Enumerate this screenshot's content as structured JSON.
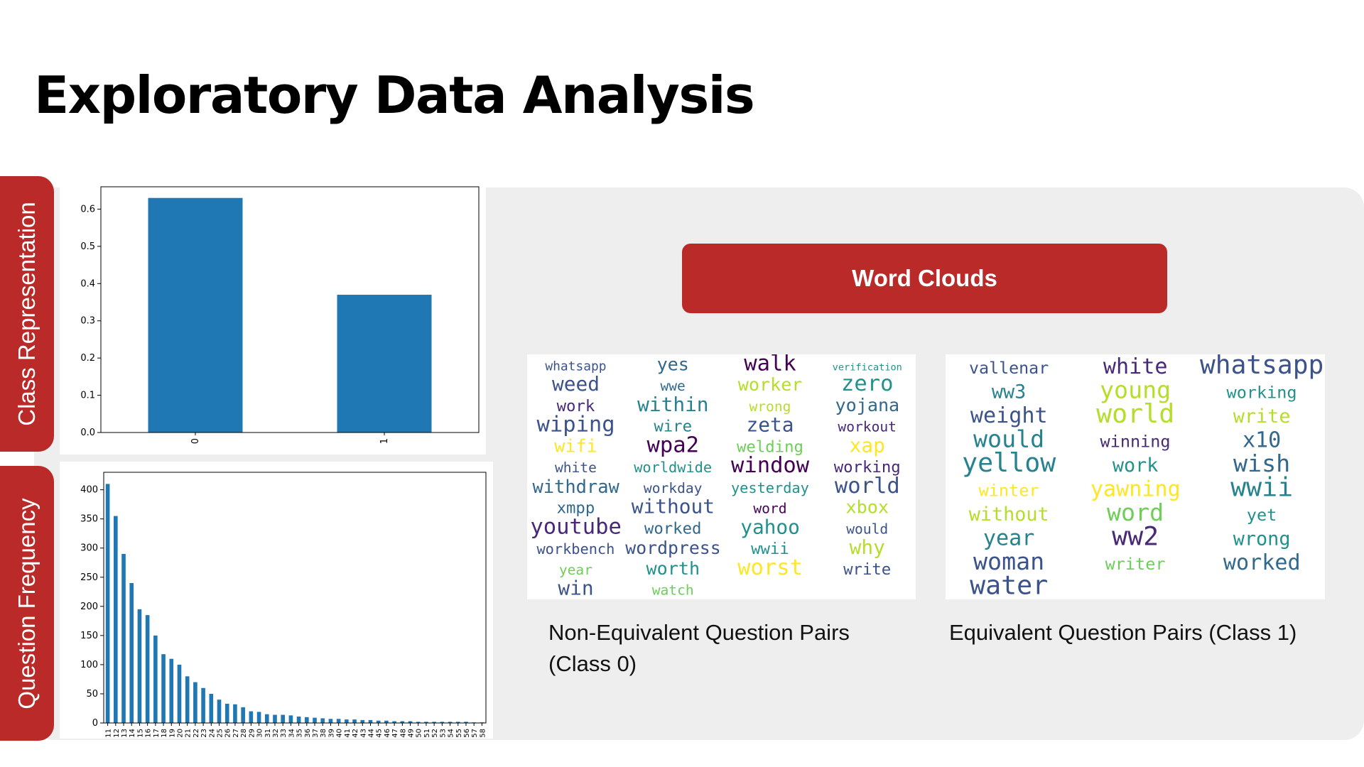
{
  "slide": {
    "title": "Exploratory Data Analysis",
    "tab_class": "Class Representation",
    "tab_freq": "Question Frequency",
    "button_label": "Word Clouds",
    "caption_class0": "Non-Equivalent Question Pairs (Class 0)",
    "caption_class1": "Equivalent Question Pairs (Class 1)"
  },
  "colors": {
    "accent_red": "#b92a28",
    "panel_gray": "#eeeeee",
    "bar_blue": "#1f77b4"
  },
  "chart_data": [
    {
      "type": "bar",
      "categories": [
        "0",
        "1"
      ],
      "values": [
        0.63,
        0.37
      ],
      "ylim": [
        0,
        0.66
      ],
      "yticks": [
        "0.0",
        "0.1",
        "0.2",
        "0.3",
        "0.4",
        "0.5",
        "0.6"
      ],
      "title": "",
      "xlabel": "",
      "ylabel": ""
    },
    {
      "type": "bar",
      "categories": [
        "11",
        "12",
        "13",
        "14",
        "15",
        "16",
        "17",
        "18",
        "19",
        "20",
        "21",
        "22",
        "23",
        "24",
        "25",
        "26",
        "27",
        "28",
        "29",
        "30",
        "31",
        "32",
        "33",
        "34",
        "35",
        "36",
        "37",
        "38",
        "39",
        "40",
        "41",
        "42",
        "43",
        "44",
        "45",
        "46",
        "47",
        "48",
        "49",
        "50",
        "51",
        "52",
        "53",
        "54",
        "55",
        "56",
        "57",
        "58"
      ],
      "values": [
        410,
        355,
        290,
        240,
        195,
        185,
        150,
        118,
        110,
        100,
        80,
        70,
        60,
        50,
        40,
        33,
        32,
        27,
        20,
        19,
        15,
        14,
        14,
        13,
        11,
        10,
        9,
        8,
        7,
        7,
        6,
        6,
        5,
        5,
        4,
        4,
        3,
        3,
        3,
        2,
        2,
        2,
        2,
        2,
        2,
        2,
        1,
        1
      ],
      "ylim": [
        0,
        430
      ],
      "yticks": [
        "0",
        "50",
        "100",
        "150",
        "200",
        "250",
        "300",
        "350",
        "400"
      ],
      "title": "",
      "xlabel": "",
      "ylabel": ""
    }
  ],
  "word_clouds": [
    {
      "label": "Class 0",
      "words": [
        {
          "text": "whatsapp",
          "color": "#3b528b"
        },
        {
          "text": "yes",
          "color": "#31688e"
        },
        {
          "text": "walk",
          "color": "#440154"
        },
        {
          "text": "verification",
          "color": "#21918c"
        },
        {
          "text": "weed",
          "color": "#3b528b"
        },
        {
          "text": "wwe",
          "color": "#31688e"
        },
        {
          "text": "worker",
          "color": "#b5de2b"
        },
        {
          "text": "zero",
          "color": "#21918c"
        },
        {
          "text": "work",
          "color": "#482878"
        },
        {
          "text": "within",
          "color": "#26828e"
        },
        {
          "text": "wrong",
          "color": "#b5de2b"
        },
        {
          "text": "yojana",
          "color": "#31688e"
        },
        {
          "text": "wiping",
          "color": "#3b528b"
        },
        {
          "text": "wire",
          "color": "#26828e"
        },
        {
          "text": "zeta",
          "color": "#3b528b"
        },
        {
          "text": "workout",
          "color": "#482878"
        },
        {
          "text": "wifi",
          "color": "#fde725"
        },
        {
          "text": "wpa2",
          "color": "#440154"
        },
        {
          "text": "welding",
          "color": "#6ece58"
        },
        {
          "text": "xap",
          "color": "#fde725"
        },
        {
          "text": "white",
          "color": "#3b528b"
        },
        {
          "text": "worldwide",
          "color": "#21918c"
        },
        {
          "text": "window",
          "color": "#440154"
        },
        {
          "text": "working",
          "color": "#482878"
        },
        {
          "text": "withdraw",
          "color": "#31688e"
        },
        {
          "text": "workday",
          "color": "#3b528b"
        },
        {
          "text": "yesterday",
          "color": "#21918c"
        },
        {
          "text": "world",
          "color": "#3b528b"
        },
        {
          "text": "xmpp",
          "color": "#31688e"
        },
        {
          "text": "without",
          "color": "#3b528b"
        },
        {
          "text": "word",
          "color": "#440154"
        },
        {
          "text": "xbox",
          "color": "#b5de2b"
        },
        {
          "text": "youtube",
          "color": "#482878"
        },
        {
          "text": "worked",
          "color": "#31688e"
        },
        {
          "text": "yahoo",
          "color": "#21918c"
        },
        {
          "text": "would",
          "color": "#3b528b"
        },
        {
          "text": "workbench",
          "color": "#3b528b"
        },
        {
          "text": "wordpress",
          "color": "#3b528b"
        },
        {
          "text": "wwii",
          "color": "#21918c"
        },
        {
          "text": "why",
          "color": "#b5de2b"
        },
        {
          "text": "year",
          "color": "#6ece58"
        },
        {
          "text": "worth",
          "color": "#21918c"
        },
        {
          "text": "worst",
          "color": "#fde725"
        },
        {
          "text": "write",
          "color": "#3b528b"
        },
        {
          "text": "win",
          "color": "#3b528b"
        },
        {
          "text": "watch",
          "color": "#6ece58"
        }
      ]
    },
    {
      "label": "Class 1",
      "words": [
        {
          "text": "vallenar",
          "color": "#3b528b"
        },
        {
          "text": "white",
          "color": "#482878"
        },
        {
          "text": "whatsapp",
          "color": "#3b528b"
        },
        {
          "text": "ww3",
          "color": "#26828e"
        },
        {
          "text": "young",
          "color": "#b5de2b"
        },
        {
          "text": "working",
          "color": "#21918c"
        },
        {
          "text": "weight",
          "color": "#3b528b"
        },
        {
          "text": "world",
          "color": "#b5de2b"
        },
        {
          "text": "write",
          "color": "#b5de2b"
        },
        {
          "text": "would",
          "color": "#26828e"
        },
        {
          "text": "winning",
          "color": "#482878"
        },
        {
          "text": "x10",
          "color": "#31688e"
        },
        {
          "text": "yellow",
          "color": "#26828e"
        },
        {
          "text": "work",
          "color": "#21918c"
        },
        {
          "text": "wish",
          "color": "#31688e"
        },
        {
          "text": "winter",
          "color": "#fde725"
        },
        {
          "text": "yawning",
          "color": "#fde725"
        },
        {
          "text": "wwii",
          "color": "#26828e"
        },
        {
          "text": "without",
          "color": "#b5de2b"
        },
        {
          "text": "word",
          "color": "#6ece58"
        },
        {
          "text": "yet",
          "color": "#21918c"
        },
        {
          "text": "year",
          "color": "#26828e"
        },
        {
          "text": "ww2",
          "color": "#482878"
        },
        {
          "text": "wrong",
          "color": "#21918c"
        },
        {
          "text": "woman",
          "color": "#3b528b"
        },
        {
          "text": "writer",
          "color": "#6ece58"
        },
        {
          "text": "worked",
          "color": "#31688e"
        },
        {
          "text": "water",
          "color": "#3b528b"
        }
      ]
    }
  ]
}
